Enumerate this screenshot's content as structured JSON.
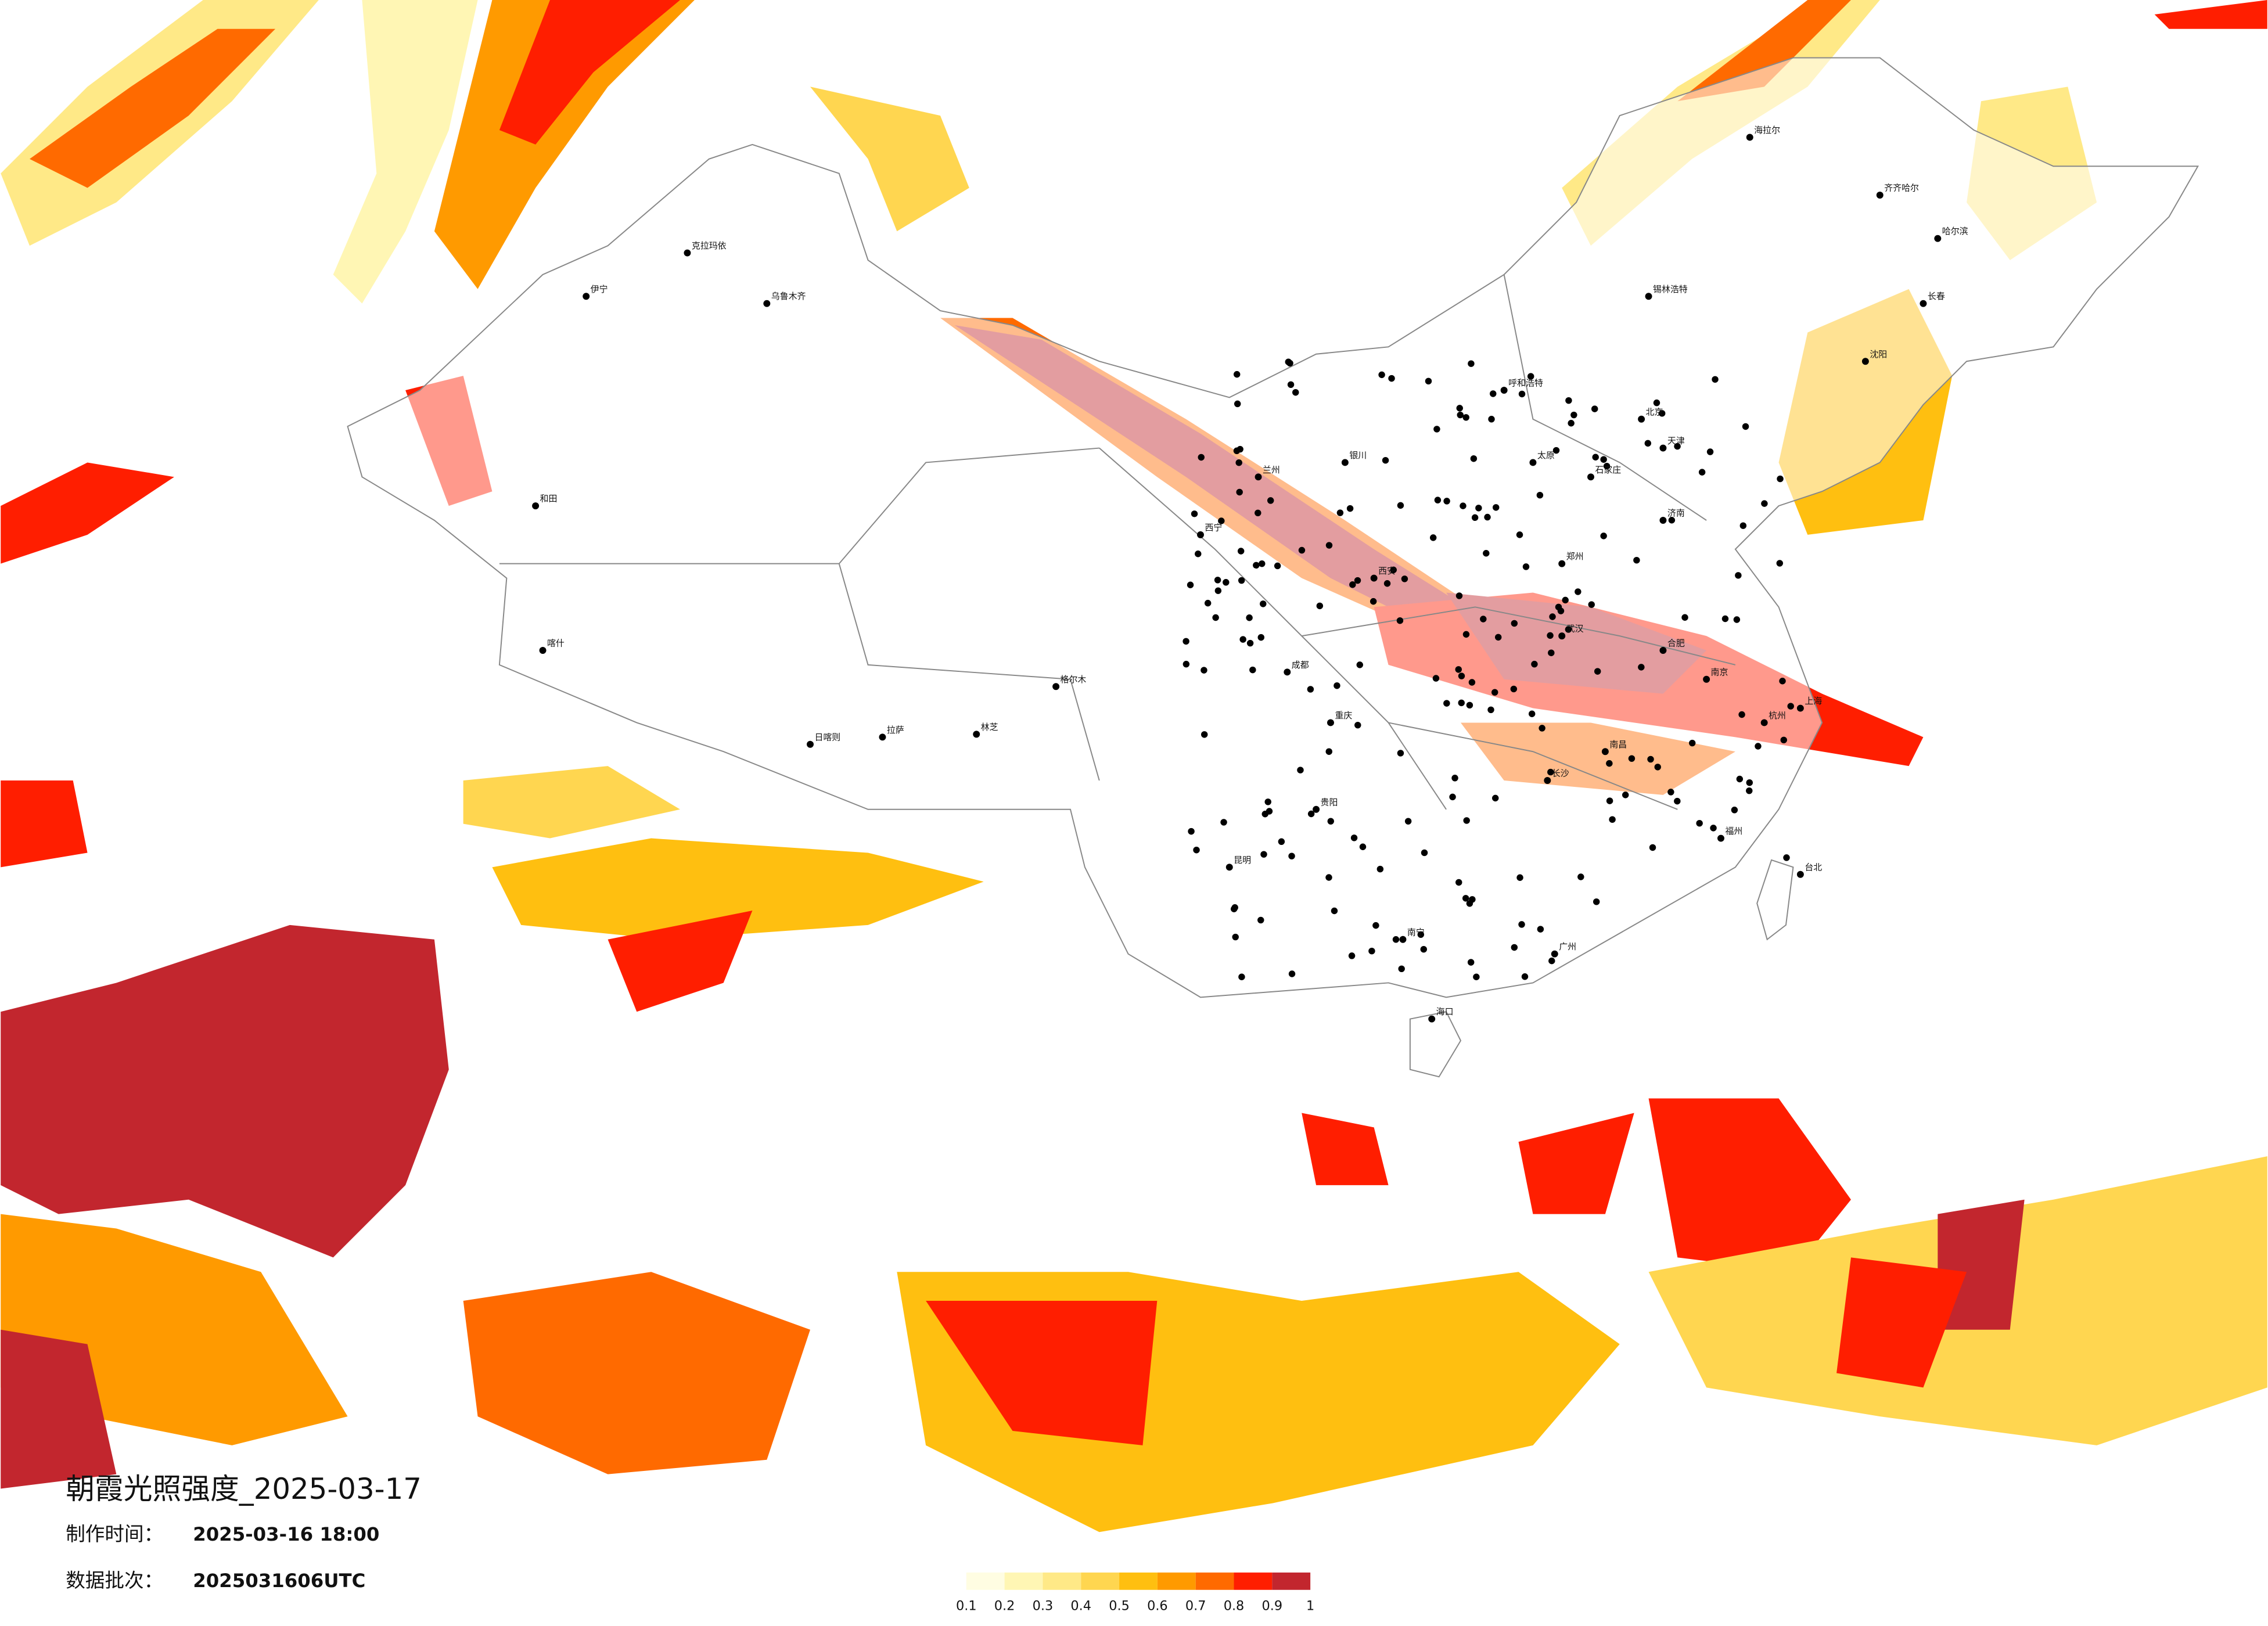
{
  "title": "朝霞光照强度_2025-03-17",
  "made_label": "制作时间：",
  "made_time": "2025-03-16 18:00",
  "batch_label": "数据批次：",
  "batch": "2025031606UTC",
  "legend": {
    "colors": [
      "#fffde2",
      "#fff6b4",
      "#ffe987",
      "#ffd650",
      "#ffbf10",
      "#ff9a00",
      "#ff6a00",
      "#ff1e00",
      "#c2262e"
    ],
    "labels": [
      "0.1",
      "0.2",
      "0.3",
      "0.4",
      "0.5",
      "0.6",
      "0.7",
      "0.8",
      "0.9",
      "1"
    ]
  },
  "cities": [
    "北京",
    "上海",
    "广州",
    "乌鲁木齐",
    "拉萨",
    "哈尔滨",
    "西宁",
    "成都",
    "昆明",
    "海口",
    "台北",
    "呼和浩特",
    "克拉玛依",
    "和田",
    "长春",
    "沈阳",
    "武汉",
    "西安",
    "兰州",
    "银川",
    "重庆",
    "贵阳",
    "南宁",
    "福州",
    "杭州",
    "南京",
    "济南",
    "郑州",
    "长沙",
    "南昌",
    "合肥",
    "太原",
    "石家庄",
    "天津",
    "喀什",
    "伊宁",
    "格尔木",
    "日喀则",
    "林芝",
    "齐齐哈尔",
    "海拉尔",
    "锡林浩特"
  ]
}
